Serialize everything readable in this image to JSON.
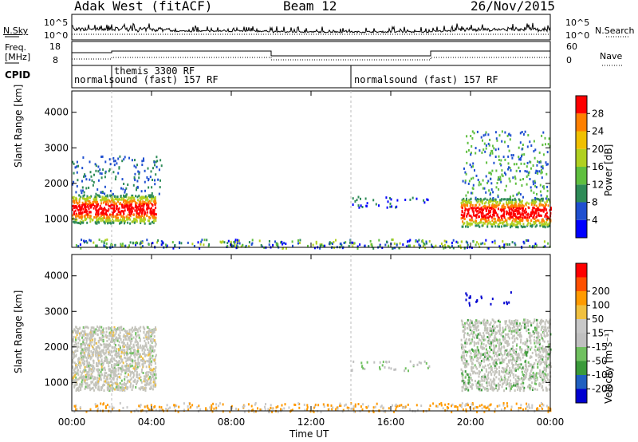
{
  "header": {
    "station": "Adak West (fitACF)",
    "beam": "Beam 12",
    "date": "26/Nov/2015"
  },
  "top_panels": {
    "nsky_label": "N.Sky",
    "nsky_ticks": [
      "10^5",
      "10^0"
    ],
    "nsearch_label": "N.Search",
    "nsearch_ticks": [
      "10^5",
      "10^0"
    ],
    "freq_label_1": "Freq.",
    "freq_label_2": "[MHz]",
    "freq_ticks": [
      "18",
      "8"
    ],
    "nave_label": "Nave",
    "nave_ticks": [
      "60",
      "0"
    ],
    "cpid_label": "CPID",
    "cpid_entries": [
      "themis 3300 RF",
      "normalsound (fast) 157 RF",
      "normalsound (fast) 157 RF"
    ]
  },
  "colors": {
    "scale": [
      "#0000ff",
      "#1f4fd0",
      "#2e8b57",
      "#5fbf3f",
      "#b0d020",
      "#f0c000",
      "#ff8000",
      "#ff0000"
    ],
    "velocity_scale": [
      "#ff0000",
      "#ff5000",
      "#ff9a00",
      "#f0c040",
      "#c8c8c8",
      "#c0c0c0",
      "#70c060",
      "#3a9a3a",
      "#2060c0",
      "#0000d0"
    ]
  },
  "chart_data": [
    {
      "type": "heatmap",
      "title": "Power",
      "ylabel": "Slant Range [km]",
      "xlabel": "Time UT",
      "x_ticks": [
        "00:00",
        "04:00",
        "08:00",
        "12:00",
        "16:00",
        "20:00",
        "00:00"
      ],
      "y_ticks": [
        1000,
        2000,
        3000,
        4000
      ],
      "ylim": [
        200,
        4600
      ],
      "colorbar_label": "Power [dB]",
      "colorbar_ticks": [
        4,
        8,
        12,
        16,
        20,
        24,
        28
      ]
    },
    {
      "type": "heatmap",
      "title": "Velocity",
      "ylabel": "Slant Range [km]",
      "xlabel": "Time UT",
      "x_ticks": [
        "00:00",
        "04:00",
        "08:00",
        "12:00",
        "16:00",
        "20:00",
        "00:00"
      ],
      "y_ticks": [
        1000,
        2000,
        3000,
        4000
      ],
      "ylim": [
        200,
        4600
      ],
      "colorbar_label": "Velocity [m s^-1]",
      "colorbar_ticks": [
        -200,
        -100,
        -50,
        -15,
        15,
        50,
        100,
        200
      ]
    }
  ],
  "axes": {
    "x_label": "Time UT",
    "y_label": "Slant Range [km]",
    "power_cb_label": "Power [dB]",
    "velocity_cb_label": "Velocity [m s⁻¹]"
  }
}
